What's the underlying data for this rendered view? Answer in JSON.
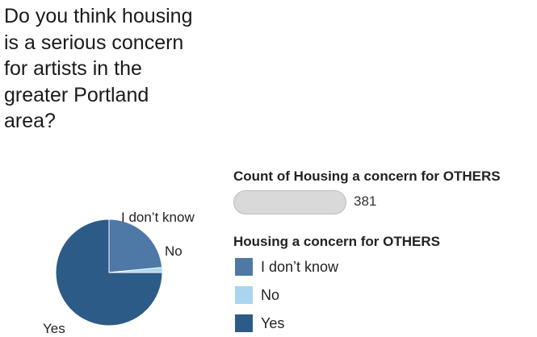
{
  "question": "Do you think housing\nis a serious concern\nfor artists in the\ngreater Portland\narea?",
  "size_legend": {
    "title": "Count of Housing a concern for OTHERS",
    "value": "381"
  },
  "color_legend": {
    "title": "Housing a concern for OTHERS"
  },
  "colors": {
    "I don’t know": "#4e79a7",
    "No": "#a9d6ee",
    "Yes": "#2d5b88"
  },
  "chart_data": {
    "type": "pie",
    "title": "Do you think housing\nis a serious concern\nfor artists in the\ngreater Portland\narea?",
    "total": 381,
    "categories": [
      "I don’t know",
      "No",
      "Yes"
    ],
    "values": [
      0.235,
      0.015,
      0.75
    ],
    "value_unit": "share of total",
    "legend_placement": "right"
  }
}
